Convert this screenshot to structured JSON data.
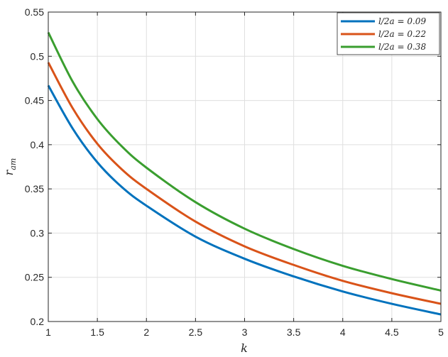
{
  "chart_data": {
    "type": "line",
    "xlabel": "k",
    "ylabel": "r",
    "ylabel_subscript": "am",
    "xlim": [
      1,
      5
    ],
    "ylim": [
      0.2,
      0.55
    ],
    "x_ticks": [
      1,
      1.5,
      2,
      2.5,
      3,
      3.5,
      4,
      4.5,
      5
    ],
    "x_tick_labels": [
      "1",
      "1.5",
      "2",
      "2.5",
      "3",
      "3.5",
      "4",
      "4.5",
      "5"
    ],
    "y_ticks": [
      0.2,
      0.25,
      0.3,
      0.35,
      0.4,
      0.45,
      0.5,
      0.55
    ],
    "y_tick_labels": [
      "0.2",
      "0.25",
      "0.3",
      "0.35",
      "0.4",
      "0.45",
      "0.5",
      "0.55"
    ],
    "grid": true,
    "legend_position": "top-right",
    "x": [
      1,
      1.25,
      1.5,
      1.75,
      2,
      2.5,
      3,
      3.5,
      4,
      4.5,
      5
    ],
    "series": [
      {
        "name": "l/2a = 0.09",
        "color": "#0072BD",
        "values": [
          0.467,
          0.418,
          0.38,
          0.352,
          0.331,
          0.296,
          0.271,
          0.251,
          0.234,
          0.22,
          0.208
        ]
      },
      {
        "name": "l/2a = 0.22",
        "color": "#D95319",
        "values": [
          0.493,
          0.441,
          0.401,
          0.372,
          0.35,
          0.313,
          0.285,
          0.264,
          0.246,
          0.232,
          0.22
        ]
      },
      {
        "name": "l/2a = 0.38",
        "color": "#3A9E2F",
        "values": [
          0.527,
          0.471,
          0.429,
          0.398,
          0.374,
          0.335,
          0.305,
          0.282,
          0.263,
          0.248,
          0.235
        ]
      }
    ]
  }
}
